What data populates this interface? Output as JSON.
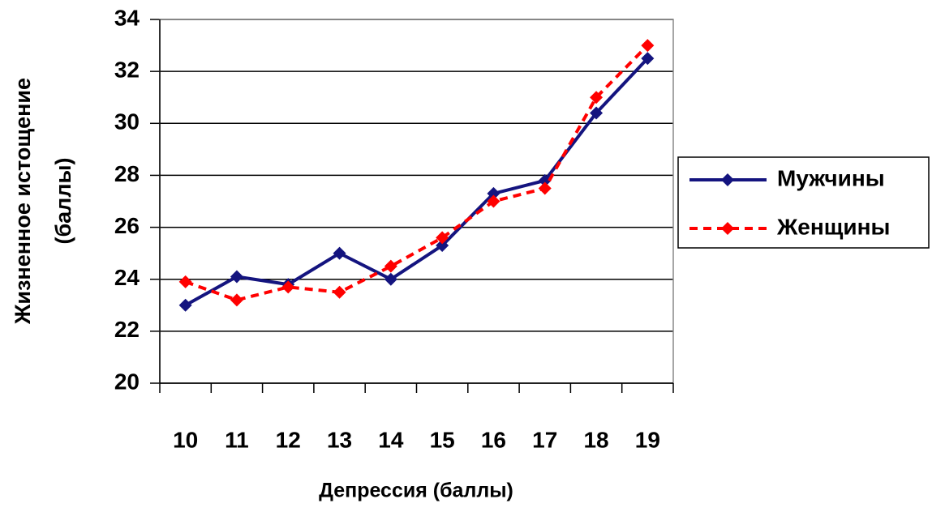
{
  "chart_data": {
    "type": "line",
    "x_label": "Депрессия (баллы)",
    "y_label": [
      "Жизненное истощение",
      "(баллы)"
    ],
    "categories": [
      "10",
      "11",
      "12",
      "13",
      "14",
      "15",
      "16",
      "17",
      "18",
      "19"
    ],
    "series": [
      {
        "name": "Мужчины",
        "color": "#14147f",
        "dash": "solid",
        "values": [
          23.0,
          24.1,
          23.8,
          25.0,
          24.0,
          25.3,
          27.3,
          27.8,
          30.4,
          32.5
        ]
      },
      {
        "name": "Женщины",
        "color": "#ff0000",
        "dash": "dashed",
        "values": [
          23.9,
          23.2,
          23.7,
          23.5,
          24.5,
          25.6,
          27.0,
          27.5,
          31.0,
          33.0
        ]
      }
    ],
    "ylim": [
      20,
      34
    ],
    "yticks": [
      20,
      22,
      24,
      26,
      28,
      30,
      32,
      34
    ],
    "grid": true,
    "legend": "right"
  }
}
